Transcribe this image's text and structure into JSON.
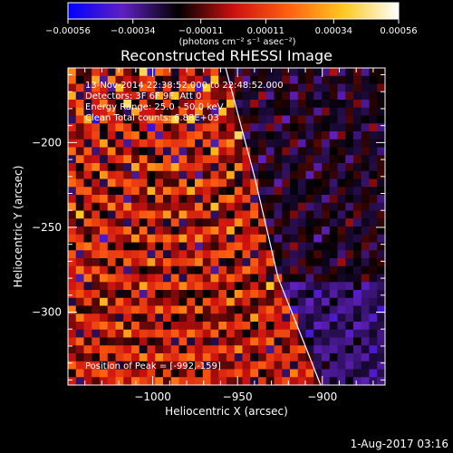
{
  "colorbar": {
    "ticks": [
      "-0.00056",
      "-0.00034",
      "-0.00011",
      "0.00011",
      "0.00034",
      "0.00056"
    ],
    "units_label": "(photons cm⁻² s⁻¹ asec⁻²)",
    "range": [
      -0.00056,
      0.00056
    ],
    "colormap": [
      "#0000ff",
      "#6020c0",
      "#000000",
      "#cc1010",
      "#ff6010",
      "#ffc820",
      "#ffffff"
    ]
  },
  "title": "Reconstructed RHESSI Image",
  "annotations": {
    "time": "13-Nov-2014 22:38:52.000 to 22:48:52.000",
    "detectors": "Detectors: 3F 6F 9F, Att 0",
    "energy": "Energy Range: 25.0 - 50.0 keV",
    "clean": "Clean    Total counts: 6.88E+03",
    "peak": "Position of Peak = [-992,-159]"
  },
  "footer_date": "1-Aug-2017 03:16",
  "chart_data": {
    "type": "heatmap",
    "title": "Reconstructed RHESSI Image",
    "xlabel": "Heliocentric X (arcsec)",
    "ylabel": "Heliocentric Y (arcsec)",
    "xlim": [
      -1050,
      -863
    ],
    "ylim": [
      -343,
      -156
    ],
    "x_ticks": [
      -1000,
      -950,
      -900
    ],
    "x_tick_labels": [
      "−1000",
      "−950",
      "−900"
    ],
    "y_ticks": [
      -200,
      -250,
      -300
    ],
    "y_tick_labels": [
      "−200",
      "−250",
      "−300"
    ],
    "value_range": [
      -0.00056,
      0.00056
    ],
    "grid_size": [
      40,
      40
    ],
    "peak_position": [
      -992,
      -159
    ],
    "limb_curve": [
      [
        -957,
        -156
      ],
      [
        -940,
        -220
      ],
      [
        -926,
        -280
      ],
      [
        -910,
        -320
      ],
      [
        -901,
        -343
      ]
    ]
  }
}
